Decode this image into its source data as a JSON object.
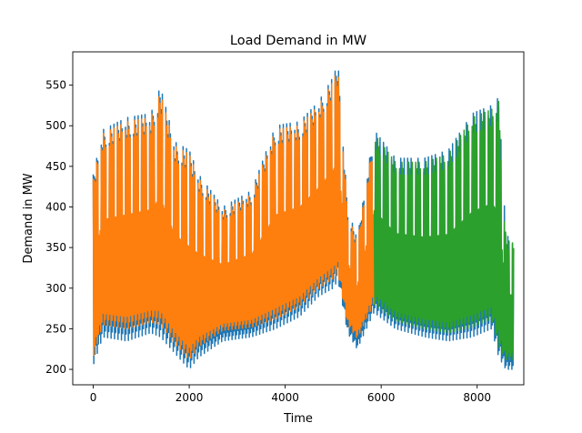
{
  "chart_data": {
    "type": "line",
    "title": "Load Demand in MW",
    "xlabel": "Time",
    "ylabel": "Demand in MW",
    "xlim": [
      -427,
      8972
    ],
    "ylim": [
      181,
      591
    ],
    "x_ticks": [
      0,
      2000,
      4000,
      6000,
      8000
    ],
    "y_ticks": [
      200,
      250,
      300,
      350,
      400,
      450,
      500,
      550
    ],
    "x_tick_labels": [
      "0",
      "2000",
      "4000",
      "6000",
      "8000"
    ],
    "y_tick_labels": [
      "200",
      "250",
      "300",
      "350",
      "400",
      "450",
      "500",
      "550"
    ],
    "grid": false,
    "legend": "none",
    "series": [
      {
        "color": "#1f77b4",
        "x_range": [
          0,
          8760
        ],
        "period_hours": 168,
        "envelope_x": [
          0,
          200,
          700,
          1200,
          1400,
          1700,
          2000,
          2200,
          2700,
          3300,
          3800,
          4300,
          4700,
          5000,
          5100,
          5300,
          5500,
          5850,
          6300,
          6900,
          7400,
          7900,
          8300,
          8450,
          8600,
          8760
        ],
        "envelope_high": [
          440,
          495,
          510,
          515,
          548,
          480,
          470,
          440,
          400,
          420,
          500,
          505,
          530,
          560,
          578,
          400,
          360,
          495,
          460,
          460,
          470,
          515,
          525,
          535,
          365,
          360
        ],
        "envelope_low": [
          205,
          240,
          235,
          245,
          240,
          220,
          200,
          215,
          235,
          240,
          250,
          265,
          290,
          300,
          310,
          245,
          225,
          270,
          250,
          240,
          235,
          240,
          250,
          215,
          200,
          200
        ]
      },
      {
        "color": "#ff7f0e",
        "x_range": [
          0,
          5856
        ],
        "period_hours": 168,
        "envelope_x": [
          0,
          200,
          700,
          1200,
          1400,
          1700,
          2000,
          2200,
          2700,
          3300,
          3800,
          4300,
          4700,
          5000,
          5100,
          5300,
          5500,
          5856
        ],
        "envelope_high": [
          435,
          490,
          505,
          510,
          540,
          475,
          465,
          435,
          395,
          415,
          495,
          500,
          525,
          555,
          570,
          395,
          355,
          490
        ],
        "envelope_low": [
          215,
          255,
          250,
          258,
          255,
          232,
          212,
          228,
          248,
          252,
          262,
          277,
          300,
          312,
          318,
          255,
          238,
          282
        ]
      },
      {
        "color": "#2ca02c",
        "x_range": [
          5856,
          8760
        ],
        "period_hours": 168,
        "envelope_x": [
          5856,
          6300,
          6900,
          7400,
          7900,
          8300,
          8450,
          8600,
          8760
        ],
        "envelope_high": [
          490,
          455,
          455,
          465,
          510,
          520,
          530,
          360,
          355
        ],
        "envelope_low": [
          280,
          260,
          250,
          245,
          252,
          262,
          228,
          212,
          212
        ]
      }
    ]
  }
}
